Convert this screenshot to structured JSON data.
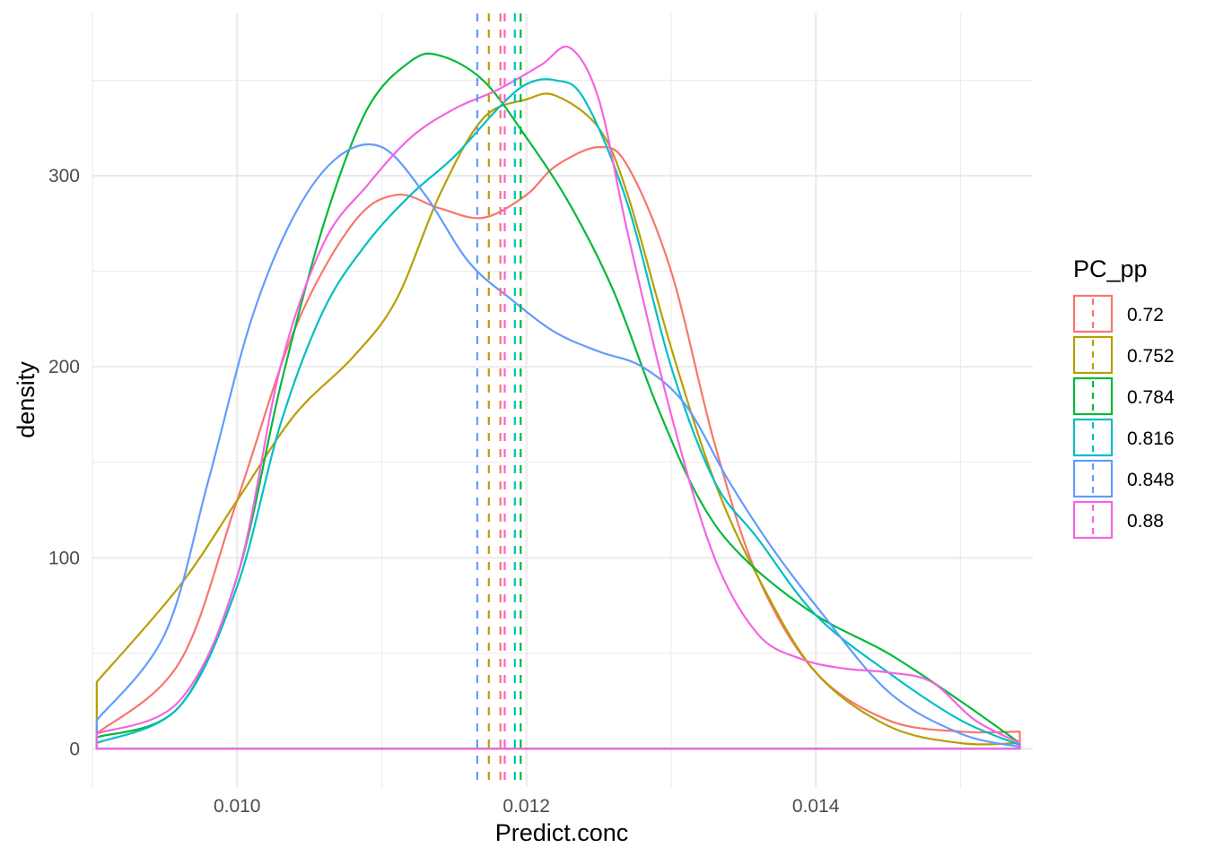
{
  "chart_data": {
    "type": "line",
    "subtype": "density",
    "title": "",
    "xlabel": "Predict.conc",
    "ylabel": "density",
    "xlim": [
      0.009,
      0.0155
    ],
    "ylim": [
      -20,
      385
    ],
    "x_ticks": [
      {
        "value": 0.01,
        "label": "0.010"
      },
      {
        "value": 0.012,
        "label": "0.012"
      },
      {
        "value": 0.014,
        "label": "0.014"
      }
    ],
    "y_ticks": [
      {
        "value": 0,
        "label": "0"
      },
      {
        "value": 100,
        "label": "100"
      },
      {
        "value": 200,
        "label": "200"
      },
      {
        "value": 300,
        "label": "300"
      }
    ],
    "grid": true,
    "legend": {
      "title": "PC_pp",
      "position": "right"
    },
    "series": [
      {
        "name": "0.72",
        "color": "#F8766D",
        "mean": 0.01182,
        "x": [
          0.00903,
          0.0096,
          0.01,
          0.0104,
          0.0108,
          0.0111,
          0.0114,
          0.0117,
          0.012,
          0.0122,
          0.0125,
          0.0127,
          0.013,
          0.0133,
          0.0136,
          0.014,
          0.0145,
          0.015,
          0.01541
        ],
        "y": [
          8,
          45,
          130,
          220,
          275,
          290,
          283,
          278,
          290,
          305,
          315,
          305,
          250,
          160,
          90,
          40,
          15,
          9,
          9
        ]
      },
      {
        "name": "0.752",
        "color": "#B79F00",
        "mean": 0.01174,
        "x": [
          0.00903,
          0.0096,
          0.01,
          0.0104,
          0.0108,
          0.0111,
          0.0114,
          0.0117,
          0.012,
          0.0122,
          0.0125,
          0.0127,
          0.013,
          0.0133,
          0.0136,
          0.014,
          0.0145,
          0.015,
          0.01541
        ],
        "y": [
          35,
          85,
          130,
          175,
          205,
          235,
          290,
          330,
          340,
          342,
          325,
          290,
          210,
          140,
          90,
          40,
          12,
          3,
          3
        ]
      },
      {
        "name": "0.784",
        "color": "#00BA38",
        "mean": 0.01196,
        "x": [
          0.00903,
          0.0096,
          0.01,
          0.0103,
          0.0106,
          0.0109,
          0.0112,
          0.0114,
          0.0117,
          0.012,
          0.0123,
          0.0126,
          0.0129,
          0.0132,
          0.0135,
          0.014,
          0.0145,
          0.015,
          0.01541
        ],
        "y": [
          6,
          22,
          90,
          190,
          275,
          335,
          360,
          363,
          350,
          320,
          285,
          240,
          180,
          130,
          100,
          70,
          50,
          25,
          3
        ]
      },
      {
        "name": "0.816",
        "color": "#00BFC4",
        "mean": 0.01192,
        "x": [
          0.00903,
          0.0096,
          0.01,
          0.0103,
          0.0106,
          0.0109,
          0.0112,
          0.0115,
          0.0118,
          0.012,
          0.0122,
          0.0124,
          0.0127,
          0.013,
          0.0133,
          0.0136,
          0.014,
          0.0145,
          0.015,
          0.01541
        ],
        "y": [
          3,
          22,
          85,
          170,
          230,
          265,
          290,
          310,
          335,
          348,
          350,
          340,
          285,
          200,
          140,
          110,
          70,
          40,
          15,
          2
        ]
      },
      {
        "name": "0.848",
        "color": "#619CFF",
        "mean": 0.01166,
        "x": [
          0.00903,
          0.0095,
          0.0098,
          0.0101,
          0.0104,
          0.0107,
          0.011,
          0.0113,
          0.0116,
          0.0119,
          0.0122,
          0.0125,
          0.0128,
          0.0131,
          0.0134,
          0.0137,
          0.014,
          0.0145,
          0.015,
          0.01541
        ],
        "y": [
          15,
          60,
          140,
          225,
          280,
          310,
          315,
          290,
          255,
          235,
          218,
          208,
          200,
          180,
          140,
          105,
          75,
          30,
          8,
          1
        ]
      },
      {
        "name": "0.88",
        "color": "#F564E3",
        "mean": 0.01185,
        "x": [
          0.00903,
          0.0096,
          0.01,
          0.0103,
          0.0106,
          0.0109,
          0.0112,
          0.0115,
          0.0118,
          0.0121,
          0.0123,
          0.0125,
          0.0127,
          0.013,
          0.0133,
          0.0136,
          0.0139,
          0.0142,
          0.0145,
          0.0148,
          0.0151,
          0.01541
        ],
        "y": [
          8,
          25,
          90,
          200,
          265,
          295,
          320,
          335,
          345,
          358,
          367,
          340,
          270,
          175,
          100,
          60,
          47,
          42,
          40,
          35,
          15,
          3
        ]
      }
    ]
  }
}
